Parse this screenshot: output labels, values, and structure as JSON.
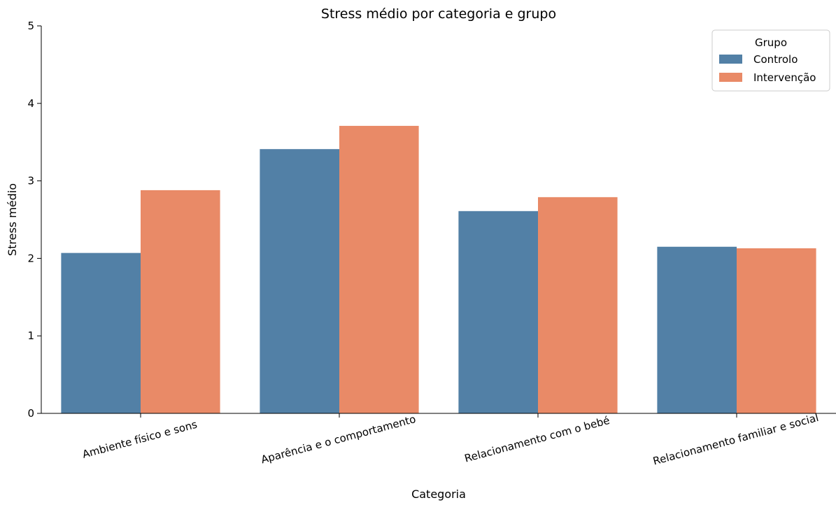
{
  "chart_data": {
    "type": "bar",
    "title": "Stress médio por categoria e grupo",
    "xlabel": "Categoria",
    "ylabel": "Stress médio",
    "ylim": [
      0,
      5
    ],
    "yticks": [
      "0",
      "1",
      "2",
      "3",
      "4",
      "5"
    ],
    "categories": [
      "Ambiente físico e sons",
      "Aparência e o comportamento",
      "Relacionamento com o bebé",
      "Relacionamento familiar e social"
    ],
    "series": [
      {
        "name": "Controlo",
        "color": "#5280a6",
        "values": [
          2.07,
          3.41,
          2.61,
          2.15
        ]
      },
      {
        "name": "Intervenção",
        "color": "#e98a67",
        "values": [
          2.88,
          3.71,
          2.79,
          2.13
        ]
      }
    ],
    "legend": {
      "title": "Grupo",
      "position": "top-right"
    },
    "grid": false
  }
}
